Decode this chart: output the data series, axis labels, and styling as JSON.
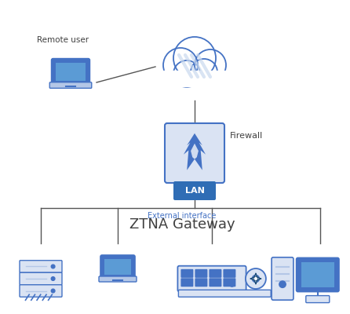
{
  "bg_color": "#ffffff",
  "line_color": "#555555",
  "blue_dark": "#1f4e79",
  "blue_mid": "#4472c4",
  "blue_light": "#b4c7e7",
  "blue_box": "#2f6db5",
  "icon_fill": "#dae3f3",
  "icon_border": "#4472c4",
  "text_color": "#404040",
  "label_blue": "#4472c4",
  "remote_user_label": "Remote user",
  "firewall_label": "Firewall",
  "lan_label": "LAN",
  "ext_iface_label": "External interface",
  "gateway_label": "ZTNA Gateway",
  "cloud_stripe": "#c9d9ee",
  "cloud_white": "#ffffff"
}
